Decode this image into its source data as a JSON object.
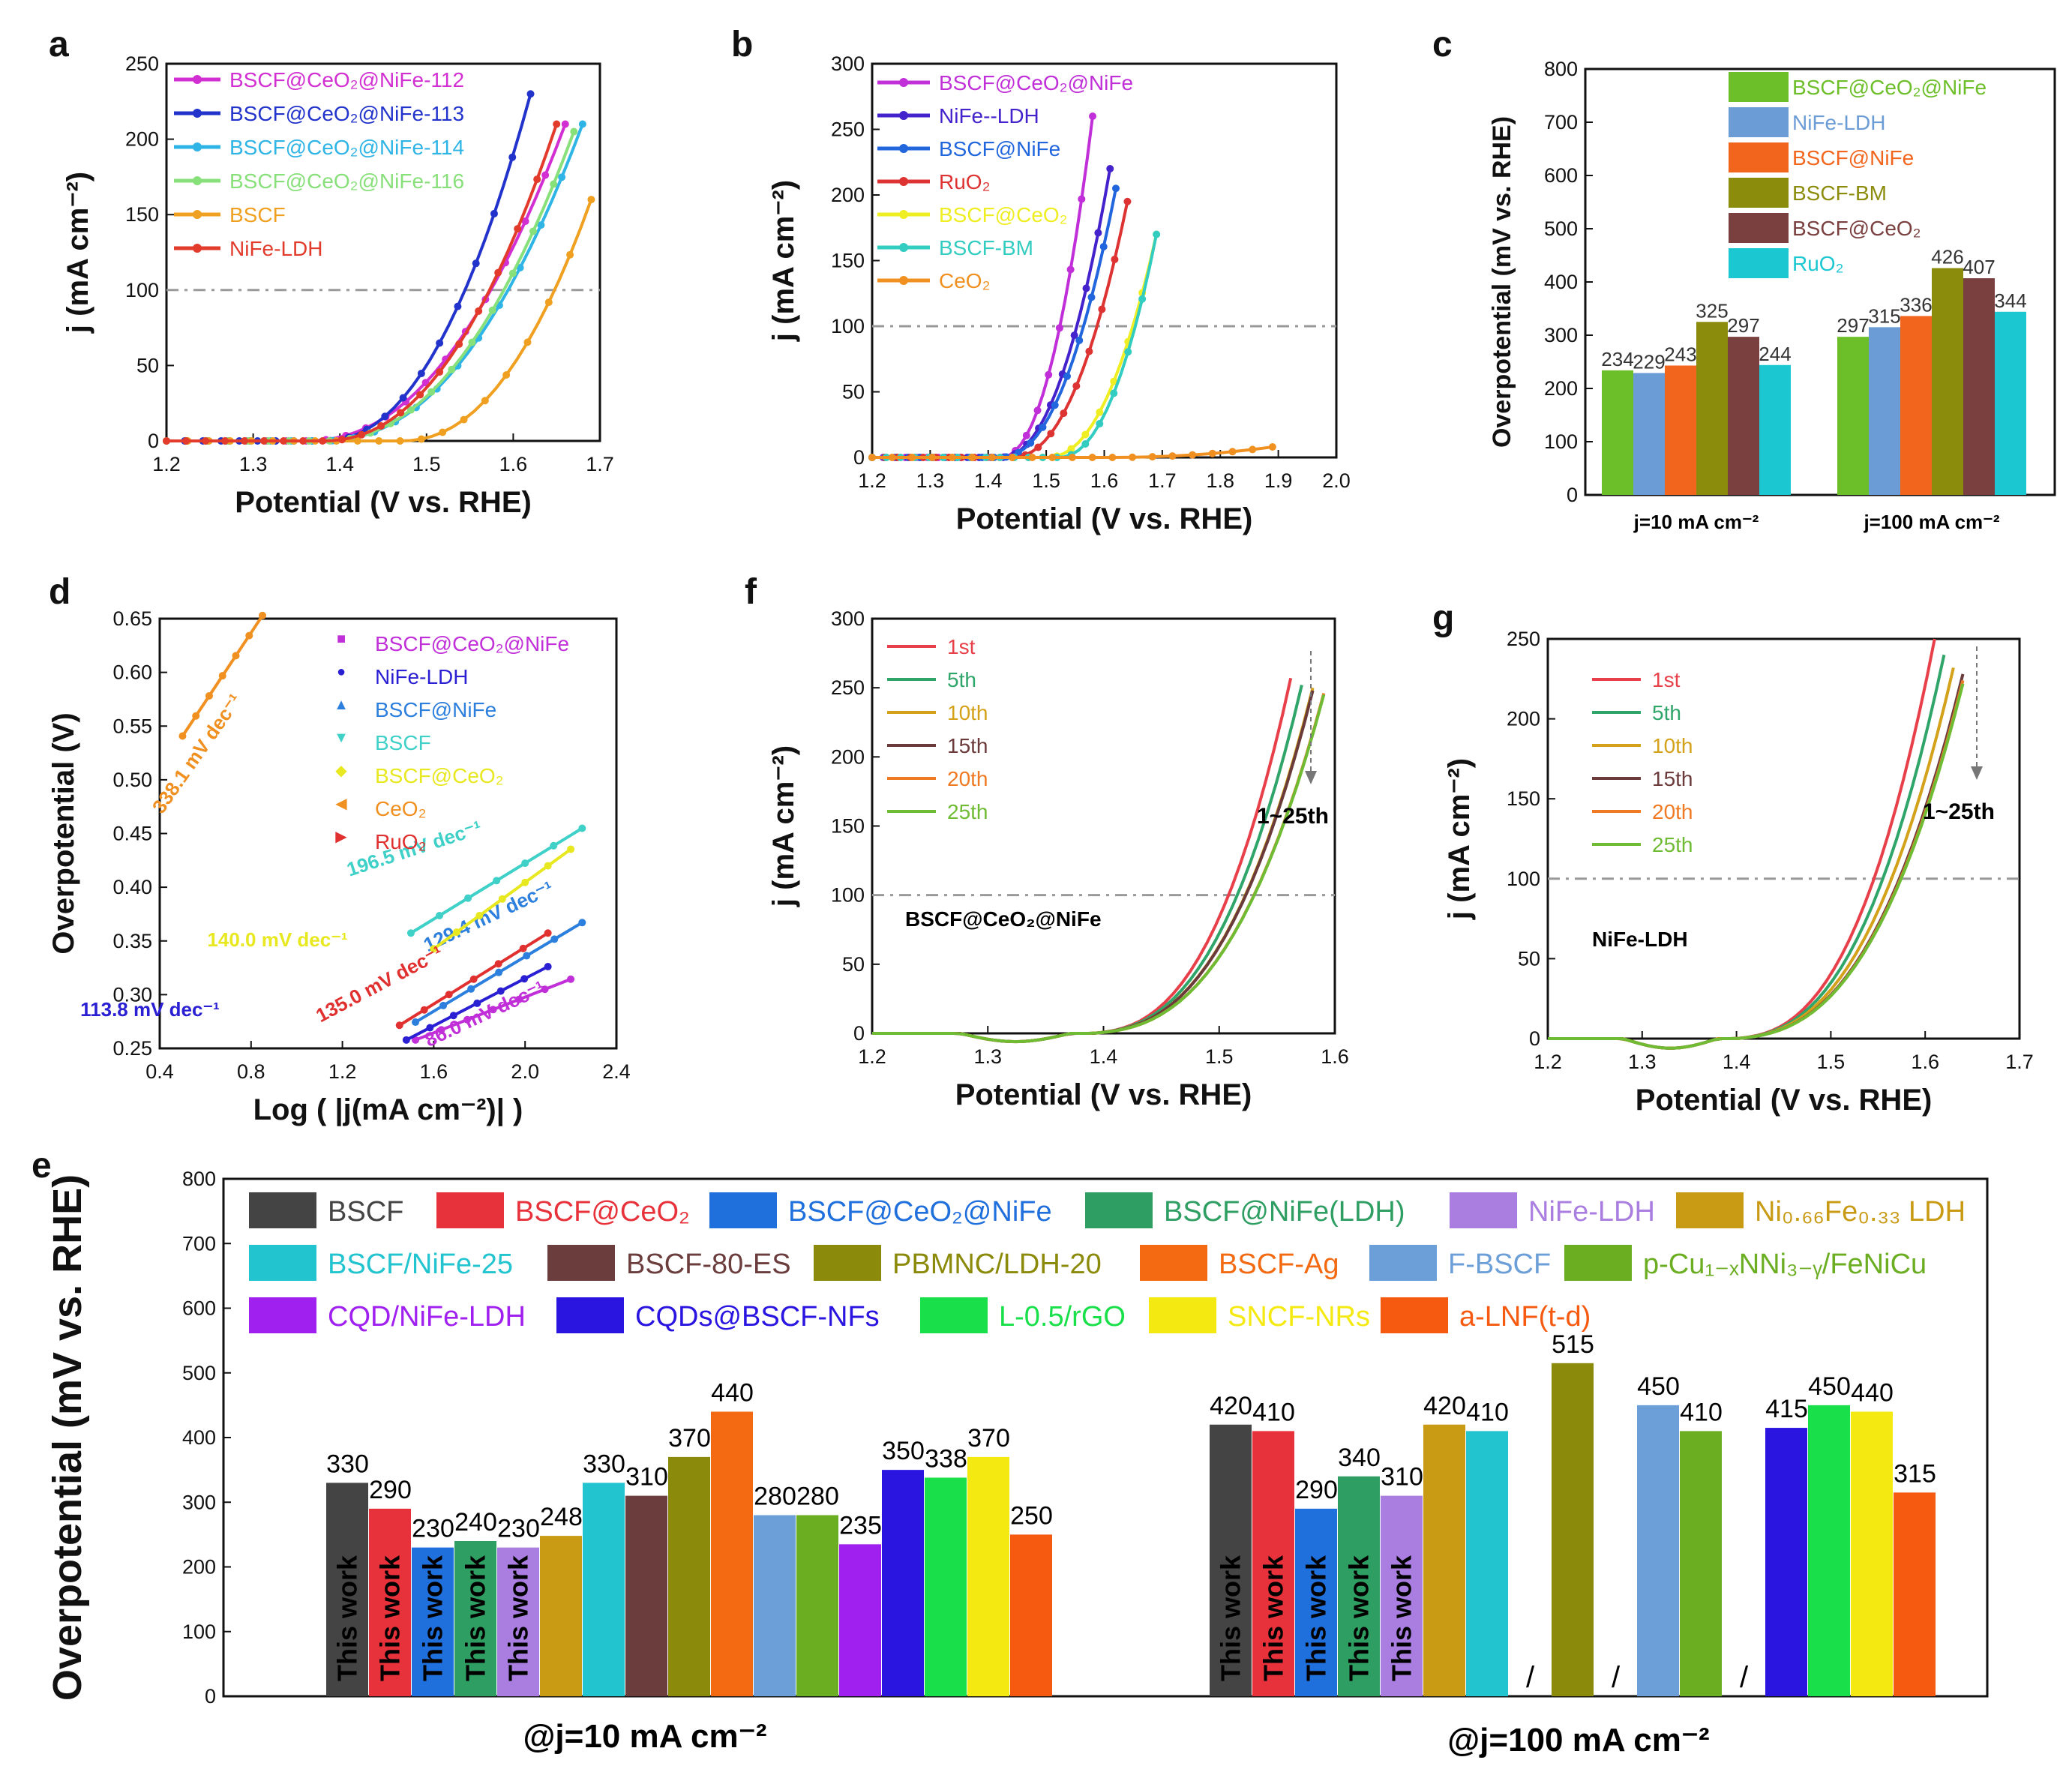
{
  "chart_data": [
    {
      "panel": "a",
      "type": "line",
      "xlabel": "Potential (V vs. RHE)",
      "ylabel": "j (mA cm⁻²)",
      "xlim": [
        1.2,
        1.7
      ],
      "ylim": [
        0,
        250
      ],
      "xticks": [
        "1.2",
        "1.3",
        "1.4",
        "1.5",
        "1.6",
        "1.7"
      ],
      "yticks": [
        "0",
        "50",
        "100",
        "150",
        "200",
        "250"
      ],
      "reference_line": 100,
      "series": [
        {
          "name": "BSCF@CeO₂@NiFe-112",
          "color": "#d22fd2",
          "onset": 1.36,
          "end": [
            1.66,
            210
          ]
        },
        {
          "name": "BSCF@CeO₂@NiFe-113",
          "color": "#2233cc",
          "onset": 1.38,
          "end": [
            1.62,
            230
          ]
        },
        {
          "name": "BSCF@CeO₂@NiFe-114",
          "color": "#2fb4e6",
          "onset": 1.38,
          "end": [
            1.68,
            210
          ]
        },
        {
          "name": "BSCF@CeO₂@NiFe-116",
          "color": "#88e07a",
          "onset": 1.38,
          "end": [
            1.67,
            205
          ]
        },
        {
          "name": "BSCF",
          "color": "#f0a020",
          "onset": 1.47,
          "end": [
            1.69,
            160
          ]
        },
        {
          "name": "NiFe-LDH",
          "color": "#e23b2b",
          "onset": 1.38,
          "end": [
            1.65,
            210
          ]
        }
      ]
    },
    {
      "panel": "b",
      "type": "line",
      "xlabel": "Potential (V vs. RHE)",
      "ylabel": "j (mA cm⁻²)",
      "xlim": [
        1.2,
        2.0
      ],
      "ylim": [
        0,
        300
      ],
      "xticks": [
        "1.2",
        "1.3",
        "1.4",
        "1.5",
        "1.6",
        "1.7",
        "1.8",
        "1.9",
        "2.0"
      ],
      "yticks": [
        "0",
        "50",
        "100",
        "150",
        "200",
        "250",
        "300"
      ],
      "reference_line": 100,
      "series": [
        {
          "name": "BSCF@CeO₂@NiFe",
          "color": "#c02fd8",
          "onset": 1.42,
          "end": [
            1.58,
            260
          ]
        },
        {
          "name": "NiFe--LDH",
          "color": "#4422cc",
          "onset": 1.42,
          "end": [
            1.61,
            220
          ]
        },
        {
          "name": "BSCF@NiFe",
          "color": "#2266dd",
          "onset": 1.42,
          "end": [
            1.62,
            205
          ]
        },
        {
          "name": "RuO₂",
          "color": "#dd3333",
          "onset": 1.44,
          "end": [
            1.64,
            195
          ]
        },
        {
          "name": "BSCF@CeO₂",
          "color": "#eeee22",
          "onset": 1.5,
          "end": [
            1.69,
            170
          ]
        },
        {
          "name": "BSCF-BM",
          "color": "#33ccc0",
          "onset": 1.52,
          "end": [
            1.69,
            170
          ]
        },
        {
          "name": "CeO₂",
          "color": "#f09020",
          "onset": 1.6,
          "end": [
            1.89,
            8
          ]
        }
      ]
    },
    {
      "panel": "c",
      "type": "bar",
      "ylabel": "Overpotential (mV vs. RHE)",
      "ylim": [
        0,
        800
      ],
      "yticks": [
        "0",
        "100",
        "200",
        "300",
        "400",
        "500",
        "600",
        "700",
        "800"
      ],
      "categories": [
        "j=10 mA cm⁻²",
        "j=100 mA cm⁻²"
      ],
      "series": [
        {
          "name": "BSCF@CeO₂@NiFe",
          "color": "#6dbf2a",
          "values": [
            234,
            297
          ]
        },
        {
          "name": "NiFe-LDH",
          "color": "#6b9cd6",
          "values": [
            229,
            315
          ]
        },
        {
          "name": "BSCF@NiFe",
          "color": "#f2651c",
          "values": [
            243,
            336
          ]
        },
        {
          "name": "BSCF-BM",
          "color": "#8c8c0c",
          "values": [
            325,
            426
          ]
        },
        {
          "name": "BSCF@CeO₂",
          "color": "#7a3f3f",
          "values": [
            297,
            407
          ]
        },
        {
          "name": "RuO₂",
          "color": "#1bc7d1",
          "values": [
            244,
            344
          ]
        }
      ]
    },
    {
      "panel": "d",
      "type": "scatter",
      "xlabel": "Log ( |j(mA cm⁻²)| )",
      "ylabel": "Overpotential (V)",
      "xlim": [
        0.4,
        2.4
      ],
      "ylim": [
        0.25,
        0.66
      ],
      "xticks": [
        "0.4",
        "0.8",
        "1.2",
        "1.6",
        "2.0",
        "2.4"
      ],
      "yticks": [
        "0.25",
        "0.30",
        "0.35",
        "0.40",
        "0.45",
        "0.50",
        "0.55",
        "0.60",
        "0.65"
      ],
      "series": [
        {
          "name": "BSCF@CeO₂@NiFe",
          "color": "#c02fd8",
          "marker": "■",
          "x": [
            1.52,
            2.2
          ],
          "y": [
            0.258,
            0.316
          ],
          "slope_label": "86.0 mV dec⁻¹"
        },
        {
          "name": "NiFe-LDH",
          "color": "#2a1fd2",
          "marker": "●",
          "x": [
            1.48,
            2.1
          ],
          "y": [
            0.258,
            0.328
          ],
          "slope_label": "113.8 mV dec⁻¹"
        },
        {
          "name": "BSCF@NiFe",
          "color": "#2c7fdc",
          "marker": "▲",
          "x": [
            1.52,
            2.25
          ],
          "y": [
            0.275,
            0.37
          ],
          "slope_label": "129.4 mV dec⁻¹"
        },
        {
          "name": "BSCF",
          "color": "#3fd0c8",
          "marker": "▼",
          "x": [
            1.5,
            2.25
          ],
          "y": [
            0.36,
            0.46
          ],
          "slope_label": "196.5 mV dec⁻¹"
        },
        {
          "name": "BSCF@CeO₂",
          "color": "#e8e820",
          "marker": "◆",
          "x": [
            1.6,
            2.2
          ],
          "y": [
            0.345,
            0.44
          ],
          "slope_label": "140.0 mV dec⁻¹"
        },
        {
          "name": "CeO₂",
          "color": "#f09020",
          "marker": "◀",
          "x": [
            0.5,
            0.85
          ],
          "y": [
            0.548,
            0.663
          ],
          "slope_label": "338.1 mV dec⁻¹"
        },
        {
          "name": "RuO₂",
          "color": "#e03030",
          "marker": "▶",
          "x": [
            1.45,
            2.1
          ],
          "y": [
            0.272,
            0.36
          ],
          "slope_label": "135.0 mV dec⁻¹"
        }
      ]
    },
    {
      "panel": "f",
      "type": "line",
      "xlabel": "Potential (V vs. RHE)",
      "ylabel": "j (mA cm⁻²)",
      "xlim": [
        1.2,
        1.62
      ],
      "ylim": [
        0,
        300
      ],
      "xticks": [
        "1.2",
        "1.3",
        "1.4",
        "1.5",
        "1.6"
      ],
      "yticks": [
        "0",
        "50",
        "100",
        "150",
        "200",
        "250",
        "300"
      ],
      "annotation": "BSCF@CeO₂@NiFe",
      "arrow_label": "1~25th",
      "series": [
        {
          "name": "1st",
          "color": "#e8404a",
          "end": [
            1.58,
            257
          ]
        },
        {
          "name": "5th",
          "color": "#2fa56a",
          "end": [
            1.59,
            252
          ]
        },
        {
          "name": "10th",
          "color": "#d4a21a",
          "end": [
            1.6,
            250
          ]
        },
        {
          "name": "15th",
          "color": "#6b3a3a",
          "end": [
            1.6,
            248
          ]
        },
        {
          "name": "20th",
          "color": "#ef7a23",
          "end": [
            1.61,
            246
          ]
        },
        {
          "name": "25th",
          "color": "#70bb34",
          "end": [
            1.61,
            245
          ]
        }
      ]
    },
    {
      "panel": "g",
      "type": "line",
      "xlabel": "Potential (V vs. RHE)",
      "ylabel": "j (mA cm⁻²)",
      "xlim": [
        1.2,
        1.7
      ],
      "ylim": [
        0,
        250
      ],
      "xticks": [
        "1.2",
        "1.3",
        "1.4",
        "1.5",
        "1.6",
        "1.7"
      ],
      "yticks": [
        "0",
        "50",
        "100",
        "150",
        "200",
        "250"
      ],
      "annotation": "NiFe-LDH",
      "arrow_label": "1~25th",
      "series": [
        {
          "name": "1st",
          "color": "#e8404a",
          "end": [
            1.61,
            250
          ]
        },
        {
          "name": "5th",
          "color": "#2fa56a",
          "end": [
            1.62,
            240
          ]
        },
        {
          "name": "10th",
          "color": "#d4a21a",
          "end": [
            1.63,
            232
          ]
        },
        {
          "name": "15th",
          "color": "#6b3a3a",
          "end": [
            1.64,
            228
          ]
        },
        {
          "name": "20th",
          "color": "#ef7a23",
          "end": [
            1.64,
            224
          ]
        },
        {
          "name": "25th",
          "color": "#70bb34",
          "end": [
            1.64,
            222
          ]
        }
      ]
    },
    {
      "panel": "e",
      "type": "bar",
      "ylabel": "Overpotential (mV vs. RHE)",
      "ylim": [
        0,
        800
      ],
      "yticks": [
        "0",
        "100",
        "200",
        "300",
        "400",
        "500",
        "600",
        "700",
        "800"
      ],
      "group_labels": [
        "@j=10 mA cm⁻²",
        "@j=100 mA cm⁻²"
      ],
      "this_work_label": "This work",
      "missing_label": "/",
      "legend": [
        {
          "name": "BSCF",
          "color": "#444444"
        },
        {
          "name": "BSCF@CeO₂",
          "color": "#e8323b"
        },
        {
          "name": "BSCF@CeO₂@NiFe",
          "color": "#1f6fdc"
        },
        {
          "name": "BSCF@NiFe(LDH)",
          "color": "#2f9e63"
        },
        {
          "name": "NiFe-LDH",
          "color": "#a97ee0"
        },
        {
          "name": "Ni₀.₆₆Fe₀.₃₃ LDH",
          "color": "#c99a14"
        },
        {
          "name": "BSCF/NiFe-25",
          "color": "#22c4cf"
        },
        {
          "name": "BSCF-80-ES",
          "color": "#6b3d3d"
        },
        {
          "name": "PBMNC/LDH-20",
          "color": "#8b8a0a"
        },
        {
          "name": "BSCF-Ag",
          "color": "#f36a12"
        },
        {
          "name": "F-BSCF",
          "color": "#6c9fd8"
        },
        {
          "name": "p-Cu₁₋ₓNNi₃₋ᵧ/FeNiCu",
          "color": "#6cae22"
        },
        {
          "name": "CQD/NiFe-LDH",
          "color": "#a020f0"
        },
        {
          "name": "CQDs@BSCF-NFs",
          "color": "#2a14e0"
        },
        {
          "name": "L-0.5/rGO",
          "color": "#19e04a"
        },
        {
          "name": "SNCF-NRs",
          "color": "#f4ea12"
        },
        {
          "name": "a-LNF(t-d)",
          "color": "#f55a10"
        }
      ],
      "values_j10": [
        330,
        290,
        230,
        240,
        230,
        248,
        330,
        310,
        370,
        440,
        280,
        280,
        235,
        350,
        338,
        370,
        250
      ],
      "values_j100": [
        420,
        410,
        290,
        340,
        310,
        420,
        410,
        null,
        515,
        null,
        450,
        410,
        null,
        415,
        450,
        440,
        315
      ]
    }
  ]
}
